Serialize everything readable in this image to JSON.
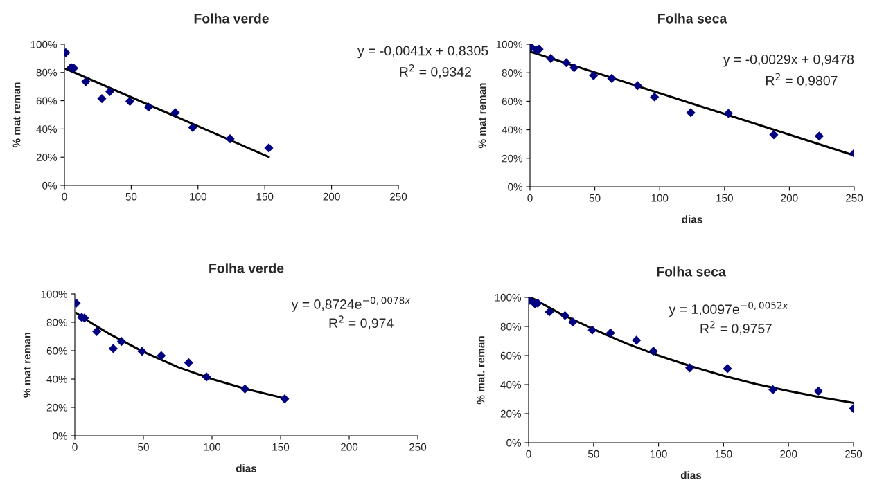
{
  "chart_data": [
    {
      "type": "scatter",
      "title": "Folha verde",
      "ylabel": "% mat reman",
      "grid": false,
      "xlim": [
        0,
        250
      ],
      "xticks": [
        0,
        50,
        100,
        150,
        200,
        250
      ],
      "ylim": [
        0,
        100
      ],
      "yticks": [
        {
          "value": 0,
          "label": "0%"
        },
        {
          "value": 20,
          "label": "20%"
        },
        {
          "value": 40,
          "label": "40%"
        },
        {
          "value": 60,
          "label": "60%"
        },
        {
          "value": 80,
          "label": "80%"
        },
        {
          "value": 100,
          "label": "100%"
        }
      ],
      "annotations": [
        "y = -0,0041x + 0,8305",
        "R$^{2}$ = 0,9342"
      ],
      "series": [
        {
          "marker": "diamond",
          "color": "#000080",
          "x": [
            1,
            5,
            7,
            16,
            28,
            34,
            49,
            63,
            83,
            96,
            124,
            153
          ],
          "values": [
            94,
            83.5,
            83,
            73.5,
            61.5,
            66.5,
            59.5,
            55.5,
            51.5,
            41,
            33,
            26.5
          ]
        },
        {
          "type": "line",
          "marker": "none",
          "color": "#000000",
          "x": [
            1,
            153
          ],
          "values": [
            82.6,
            20.2
          ]
        }
      ]
    },
    {
      "type": "scatter",
      "title": "Folha seca",
      "xlabel": "dias",
      "ylabel": "% mat reman",
      "grid": false,
      "xlim": [
        0,
        250
      ],
      "xticks": [
        0,
        50,
        100,
        150,
        200,
        250
      ],
      "ylim": [
        0,
        100
      ],
      "yticks": [
        {
          "value": 0,
          "label": "0%"
        },
        {
          "value": 20,
          "label": "20%"
        },
        {
          "value": 40,
          "label": "40%"
        },
        {
          "value": 60,
          "label": "60%"
        },
        {
          "value": 80,
          "label": "80%"
        },
        {
          "value": 100,
          "label": "100%"
        }
      ],
      "annotations": [
        "y = -0,0029x + 0,9478",
        "R$^{2}$ = 0,9807"
      ],
      "series": [
        {
          "marker": "diamond",
          "color": "#000080",
          "x": [
            1,
            5,
            7,
            16,
            28,
            34,
            49,
            63,
            83,
            96,
            124,
            153,
            188,
            223,
            250
          ],
          "values": [
            98,
            96,
            96.5,
            90,
            87,
            83.5,
            78,
            76,
            71,
            63,
            52,
            51.5,
            36.5,
            35.5,
            23.5
          ]
        },
        {
          "type": "line",
          "marker": "none",
          "color": "#000000",
          "x": [
            0,
            250
          ],
          "values": [
            94.8,
            22
          ]
        }
      ]
    },
    {
      "type": "scatter",
      "title": "Folha verde",
      "xlabel": "dias",
      "ylabel": "% mat reman",
      "grid": false,
      "xlim": [
        0,
        250
      ],
      "xticks": [
        0,
        50,
        100,
        150,
        200,
        250
      ],
      "ylim": [
        0,
        100
      ],
      "yticks": [
        {
          "value": 0,
          "label": "0%"
        },
        {
          "value": 20,
          "label": "20%"
        },
        {
          "value": 40,
          "label": "40%"
        },
        {
          "value": 60,
          "label": "60%"
        },
        {
          "value": 80,
          "label": "80%"
        },
        {
          "value": 100,
          "label": "100%"
        }
      ],
      "annotations": [
        "y = 0,8724e$^{−0,0078x}$",
        "R$^{2}$ = 0,974"
      ],
      "series": [
        {
          "marker": "diamond",
          "color": "#000080",
          "x": [
            1,
            5,
            7,
            16,
            28,
            34,
            49,
            63,
            83,
            96,
            124,
            153
          ],
          "values": [
            93.5,
            83.5,
            83,
            73.5,
            61.5,
            66.5,
            59.5,
            56.5,
            51.5,
            41.5,
            33,
            26
          ]
        },
        {
          "type": "line",
          "marker": "none",
          "color": "#000000",
          "x": [
            1,
            12,
            25,
            50,
            75,
            100,
            125,
            153
          ],
          "values": [
            86.6,
            79.5,
            71.9,
            59.2,
            48.5,
            40,
            32.9,
            26.4
          ]
        }
      ]
    },
    {
      "type": "scatter",
      "title": "Folha seca",
      "xlabel": "dias",
      "ylabel": "% mat. reman",
      "grid": false,
      "xlim": [
        0,
        250
      ],
      "xticks": [
        0,
        50,
        100,
        150,
        200,
        250
      ],
      "ylim": [
        0,
        100
      ],
      "yticks": [
        {
          "value": 0,
          "label": "0%"
        },
        {
          "value": 20,
          "label": "20%"
        },
        {
          "value": 40,
          "label": "40%"
        },
        {
          "value": 60,
          "label": "60%"
        },
        {
          "value": 80,
          "label": "80%"
        },
        {
          "value": 100,
          "label": "100%"
        }
      ],
      "annotations": [
        "y = 1,0097e$^{−0,0052x}$",
        "R$^{2}$ = 0,9757"
      ],
      "series": [
        {
          "marker": "diamond",
          "color": "#000080",
          "x": [
            1,
            5,
            7,
            16,
            28,
            34,
            49,
            63,
            83,
            96,
            124,
            153,
            188,
            223,
            250
          ],
          "values": [
            98,
            95.5,
            96,
            90,
            87.5,
            83,
            77.5,
            75.5,
            70.5,
            63,
            51.5,
            51,
            36.5,
            35.5,
            23.5
          ]
        },
        {
          "type": "line",
          "marker": "none",
          "color": "#000000",
          "x": [
            2,
            25,
            50,
            75,
            100,
            125,
            150,
            175,
            200,
            225,
            250
          ],
          "values": [
            99.9,
            88.5,
            78.1,
            68.4,
            60,
            52.6,
            46.1,
            40.4,
            35.6,
            31.2,
            27.4
          ]
        }
      ]
    }
  ]
}
